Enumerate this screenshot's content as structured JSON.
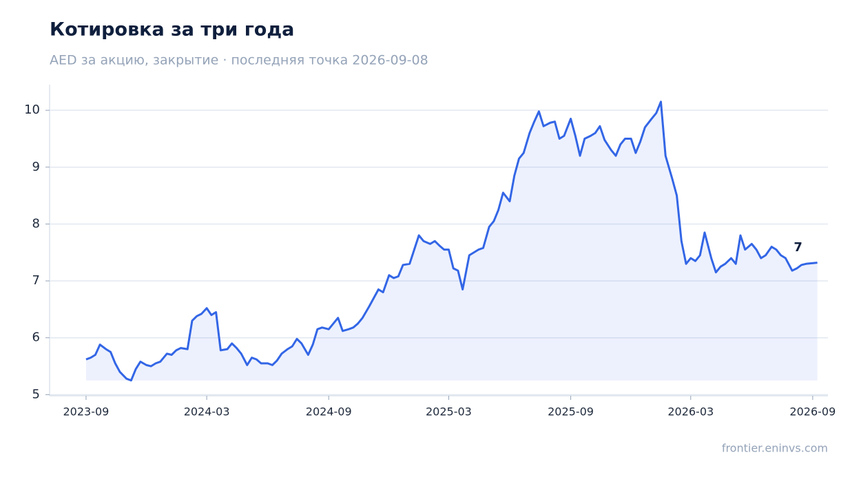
{
  "chart_data": {
    "type": "line",
    "title": "Котировка за три года",
    "subtitle": "AED за акцию, закрытие · последняя точка 2026-09-08",
    "source": "frontier.eninvs.com",
    "color": "#3366e6",
    "area": true,
    "grid": true,
    "x": [
      "2023-09-01",
      "2023-09-08",
      "2023-09-15",
      "2023-09-22",
      "2023-10-01",
      "2023-10-08",
      "2023-10-15",
      "2023-10-22",
      "2023-11-01",
      "2023-11-08",
      "2023-11-15",
      "2023-11-22",
      "2023-12-01",
      "2023-12-08",
      "2023-12-15",
      "2023-12-22",
      "2024-01-01",
      "2024-01-08",
      "2024-01-15",
      "2024-01-22",
      "2024-02-01",
      "2024-02-08",
      "2024-02-15",
      "2024-02-22",
      "2024-03-01",
      "2024-03-08",
      "2024-03-15",
      "2024-03-22",
      "2024-04-01",
      "2024-04-08",
      "2024-04-15",
      "2024-04-22",
      "2024-05-01",
      "2024-05-08",
      "2024-05-15",
      "2024-05-22",
      "2024-06-01",
      "2024-06-08",
      "2024-06-15",
      "2024-06-22",
      "2024-07-01",
      "2024-07-08",
      "2024-07-15",
      "2024-07-22",
      "2024-08-01",
      "2024-08-08",
      "2024-08-15",
      "2024-08-22",
      "2024-09-01",
      "2024-09-08",
      "2024-09-15",
      "2024-09-22",
      "2024-10-01",
      "2024-10-08",
      "2024-10-15",
      "2024-10-22",
      "2024-11-01",
      "2024-11-08",
      "2024-11-15",
      "2024-11-22",
      "2024-12-01",
      "2024-12-08",
      "2024-12-15",
      "2024-12-22",
      "2025-01-01",
      "2025-01-08",
      "2025-01-15",
      "2025-01-22",
      "2025-02-01",
      "2025-02-08",
      "2025-02-15",
      "2025-02-22",
      "2025-03-01",
      "2025-03-08",
      "2025-03-15",
      "2025-03-22",
      "2025-04-01",
      "2025-04-08",
      "2025-04-15",
      "2025-04-22",
      "2025-05-01",
      "2025-05-08",
      "2025-05-15",
      "2025-05-22",
      "2025-06-01",
      "2025-06-08",
      "2025-06-15",
      "2025-06-22",
      "2025-07-01",
      "2025-07-08",
      "2025-07-15",
      "2025-07-22",
      "2025-08-01",
      "2025-08-08",
      "2025-08-15",
      "2025-08-22",
      "2025-09-01",
      "2025-09-08",
      "2025-09-15",
      "2025-09-22",
      "2025-10-01",
      "2025-10-08",
      "2025-10-15",
      "2025-10-22",
      "2025-11-01",
      "2025-11-08",
      "2025-11-15",
      "2025-11-22",
      "2025-12-01",
      "2025-12-08",
      "2025-12-15",
      "2025-12-22",
      "2026-01-01",
      "2026-01-08",
      "2026-01-15",
      "2026-01-22",
      "2026-02-01",
      "2026-02-08",
      "2026-02-15",
      "2026-02-22",
      "2026-03-01",
      "2026-03-08",
      "2026-03-15",
      "2026-03-22",
      "2026-04-01",
      "2026-04-08",
      "2026-04-15",
      "2026-04-22",
      "2026-05-01",
      "2026-05-08",
      "2026-05-15",
      "2026-05-22",
      "2026-06-01",
      "2026-06-08",
      "2026-06-15",
      "2026-06-22",
      "2026-07-01",
      "2026-07-08",
      "2026-07-15",
      "2026-07-22",
      "2026-08-01",
      "2026-08-08",
      "2026-08-15",
      "2026-08-22",
      "2026-09-08"
    ],
    "values": [
      5.62,
      5.65,
      5.7,
      5.88,
      5.8,
      5.75,
      5.55,
      5.4,
      5.28,
      5.25,
      5.45,
      5.58,
      5.52,
      5.5,
      5.55,
      5.58,
      5.72,
      5.7,
      5.78,
      5.82,
      5.8,
      6.3,
      6.38,
      6.42,
      6.52,
      6.4,
      6.45,
      5.78,
      5.8,
      5.9,
      5.82,
      5.72,
      5.52,
      5.65,
      5.62,
      5.55,
      5.55,
      5.52,
      5.6,
      5.72,
      5.8,
      5.85,
      5.98,
      5.9,
      5.7,
      5.88,
      6.15,
      6.18,
      6.15,
      6.25,
      6.35,
      6.12,
      6.15,
      6.18,
      6.25,
      6.35,
      6.55,
      6.7,
      6.85,
      6.8,
      7.1,
      7.05,
      7.08,
      7.28,
      7.3,
      7.55,
      7.8,
      7.7,
      7.65,
      7.7,
      7.62,
      7.55,
      7.55,
      7.22,
      7.18,
      6.85,
      7.45,
      7.5,
      7.55,
      7.58,
      7.95,
      8.05,
      8.25,
      8.55,
      8.4,
      8.85,
      9.15,
      9.25,
      9.6,
      9.8,
      9.98,
      9.72,
      9.78,
      9.8,
      9.5,
      9.55,
      9.85,
      9.55,
      9.2,
      9.5,
      9.55,
      9.6,
      9.72,
      9.48,
      9.3,
      9.2,
      9.4,
      9.5,
      9.5,
      9.25,
      9.45,
      9.7,
      9.85,
      9.95,
      10.15,
      9.2,
      8.8,
      8.5,
      7.7,
      7.3,
      7.4,
      7.35,
      7.45,
      7.85,
      7.4,
      7.15,
      7.25,
      7.3,
      7.4,
      7.3,
      7.8,
      7.55,
      7.65,
      7.55,
      7.4,
      7.45,
      7.6,
      7.55,
      7.45,
      7.4,
      7.18,
      7.22,
      7.28,
      7.3,
      7.32
    ],
    "annotations": [
      {
        "text": "7",
        "x": "2026-08-10",
        "y": 7.58
      }
    ],
    "xlim": [
      "2023-07-08",
      "2026-09-24"
    ],
    "xticks": [
      "2023-09",
      "2024-03",
      "2024-09",
      "2025-03",
      "2025-09",
      "2026-03",
      "2026-09"
    ],
    "ylim": [
      4.98,
      10.45
    ],
    "yticks": [
      5,
      6,
      7,
      8,
      9,
      10
    ]
  }
}
